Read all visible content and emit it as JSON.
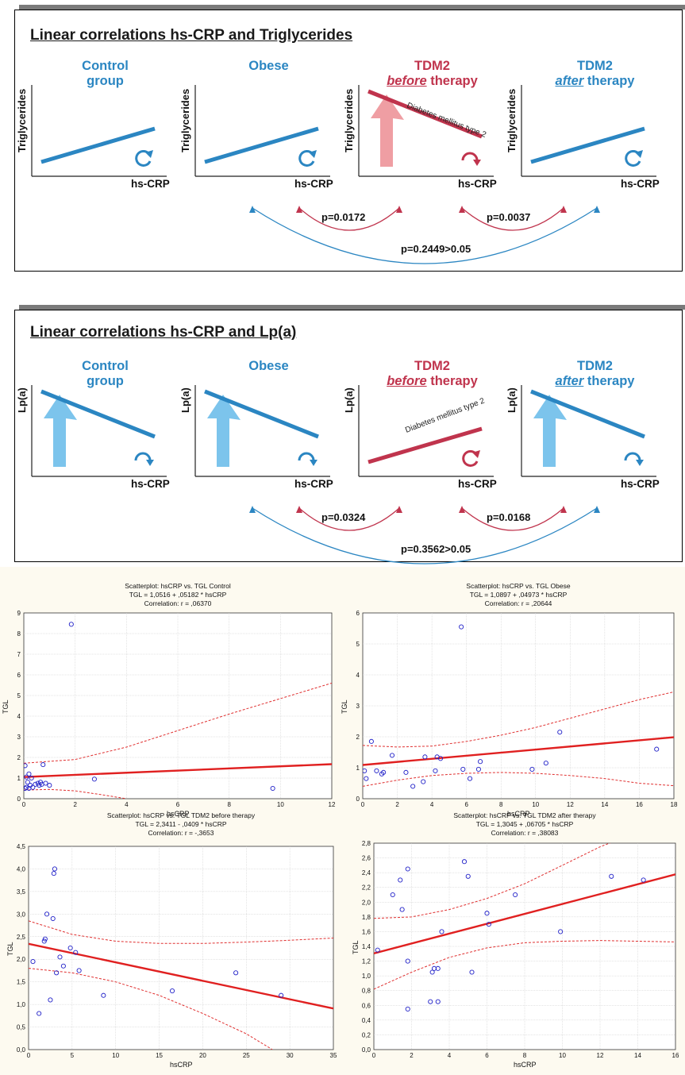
{
  "panels": [
    {
      "heading": "Linear correlations hs-CRP and Triglycerides",
      "ylabel": "Triglycerides",
      "xlabel": "hs-CRP",
      "groups": [
        {
          "line1": "Control",
          "line2": "group",
          "emphasis": "",
          "color": "#2b86c2",
          "trend": "positive",
          "icon": "rotate-ccw-icon"
        },
        {
          "line1": "Obese",
          "line2": "",
          "emphasis": "",
          "color": "#2b86c2",
          "trend": "positive",
          "icon": "rotate-ccw-icon"
        },
        {
          "line1": "TDM2",
          "line2": " therapy",
          "emphasis": "before",
          "color": "#c0344d",
          "trend": "negative",
          "icon": "rotate-cw-icon",
          "line_label": "Diabetes mellitus type 2"
        },
        {
          "line1": "TDM2",
          "line2": " therapy",
          "emphasis": "after",
          "color": "#2b86c2",
          "trend": "positive",
          "icon": "rotate-ccw-icon"
        }
      ],
      "p_values": [
        "p=0.0172",
        "p=0.0037",
        "p=0.2449>0.05"
      ]
    },
    {
      "heading": "Linear correlations hs-CRP and Lp(a)",
      "ylabel": "Lp(a)",
      "xlabel": "hs-CRP",
      "groups": [
        {
          "line1": "Control",
          "line2": "group",
          "emphasis": "",
          "color": "#2b86c2",
          "trend": "negative",
          "icon": "rotate-cw-icon"
        },
        {
          "line1": "Obese",
          "line2": "",
          "emphasis": "",
          "color": "#2b86c2",
          "trend": "negative",
          "icon": "rotate-cw-icon"
        },
        {
          "line1": "TDM2",
          "line2": " therapy",
          "emphasis": "before",
          "color": "#c0344d",
          "trend": "positive",
          "icon": "rotate-ccw-icon",
          "line_label": "Diabetes mellitus type 2"
        },
        {
          "line1": "TDM2",
          "line2": " therapy",
          "emphasis": "after",
          "color": "#2b86c2",
          "trend": "negative",
          "icon": "rotate-cw-icon"
        }
      ],
      "p_values": [
        "p=0.0324",
        "p=0.0168",
        "p=0.3562>0.05"
      ]
    }
  ],
  "chart_data": [
    {
      "type": "scatter",
      "title": "Scatterplot: hsCRP vs. TGL Control",
      "equation": "TGL = 1,0516 + ,05182 * hsCRP",
      "correlation": "Correlation: r = ,06370",
      "xlabel": "hsCRP",
      "ylabel": "TGL",
      "xlim": [
        0,
        12
      ],
      "ylim": [
        0,
        9
      ],
      "xticks": [
        "0",
        "2",
        "4",
        "6",
        "8",
        "10",
        "12"
      ],
      "yticks": [
        "0",
        "1",
        "2",
        "3",
        "4",
        "5",
        "6",
        "7",
        "8",
        "9"
      ],
      "intercept": 1.0516,
      "slope": 0.05182,
      "ci_low": [
        [
          0,
          0.42
        ],
        [
          1,
          0.45
        ],
        [
          2,
          0.38
        ],
        [
          3,
          0.2
        ],
        [
          4,
          0.0
        ]
      ],
      "ci_high": [
        [
          0,
          1.72
        ],
        [
          2,
          1.9
        ],
        [
          4,
          2.5
        ],
        [
          6,
          3.3
        ],
        [
          8,
          4.1
        ],
        [
          10,
          4.85
        ],
        [
          12,
          5.6
        ]
      ],
      "points": [
        [
          1.85,
          8.45
        ],
        [
          0.05,
          1.6
        ],
        [
          0.2,
          1.2
        ],
        [
          0.1,
          1.05
        ],
        [
          0.3,
          1.0
        ],
        [
          0.15,
          0.8
        ],
        [
          0.25,
          0.65
        ],
        [
          0.05,
          0.5
        ],
        [
          0.2,
          0.5
        ],
        [
          0.35,
          0.55
        ],
        [
          0.45,
          0.7
        ],
        [
          0.55,
          0.75
        ],
        [
          0.6,
          0.65
        ],
        [
          0.65,
          0.8
        ],
        [
          0.7,
          0.7
        ],
        [
          0.75,
          1.65
        ],
        [
          0.85,
          0.75
        ],
        [
          1.0,
          0.65
        ],
        [
          0.1,
          0.55
        ],
        [
          2.75,
          0.95
        ],
        [
          9.7,
          0.5
        ]
      ]
    },
    {
      "type": "scatter",
      "title": "Scatterplot: hsCRP vs. TGL Obese",
      "equation": "TGL = 1,0897 + ,04973 * hsCRP",
      "correlation": "Correlation: r = ,20644",
      "xlabel": "hsCRP",
      "ylabel": "TGL",
      "xlim": [
        0,
        18
      ],
      "ylim": [
        0,
        6
      ],
      "xticks": [
        "0",
        "2",
        "4",
        "6",
        "8",
        "10",
        "12",
        "14",
        "16",
        "18"
      ],
      "yticks": [
        "0",
        "1",
        "2",
        "3",
        "4",
        "5",
        "6"
      ],
      "intercept": 1.0897,
      "slope": 0.04973,
      "ci_low": [
        [
          0,
          0.4
        ],
        [
          2,
          0.6
        ],
        [
          4,
          0.75
        ],
        [
          6,
          0.82
        ],
        [
          8,
          0.85
        ],
        [
          10,
          0.82
        ],
        [
          12,
          0.75
        ],
        [
          14,
          0.65
        ],
        [
          16,
          0.5
        ],
        [
          18,
          0.42
        ]
      ],
      "ci_high": [
        [
          0,
          1.72
        ],
        [
          2,
          1.67
        ],
        [
          4,
          1.7
        ],
        [
          6,
          1.85
        ],
        [
          8,
          2.05
        ],
        [
          10,
          2.3
        ],
        [
          12,
          2.6
        ],
        [
          14,
          2.9
        ],
        [
          16,
          3.2
        ],
        [
          18,
          3.45
        ]
      ],
      "points": [
        [
          0.1,
          0.9
        ],
        [
          0.2,
          0.65
        ],
        [
          0.5,
          1.85
        ],
        [
          0.8,
          0.9
        ],
        [
          1.1,
          0.8
        ],
        [
          1.2,
          0.85
        ],
        [
          1.7,
          1.4
        ],
        [
          2.5,
          0.85
        ],
        [
          2.9,
          0.4
        ],
        [
          3.5,
          0.55
        ],
        [
          3.6,
          1.35
        ],
        [
          4.2,
          0.9
        ],
        [
          4.3,
          1.35
        ],
        [
          4.5,
          1.3
        ],
        [
          5.7,
          5.55
        ],
        [
          5.8,
          0.95
        ],
        [
          6.2,
          0.65
        ],
        [
          6.7,
          0.95
        ],
        [
          6.8,
          1.2
        ],
        [
          9.8,
          0.95
        ],
        [
          10.6,
          1.15
        ],
        [
          11.4,
          2.15
        ],
        [
          17.0,
          1.6
        ]
      ]
    },
    {
      "type": "scatter",
      "title": "Scatterplot: hsCRP vs. TGL TDM2 before therapy",
      "equation": "TGL = 2,3411 - ,0409  * hsCRP",
      "correlation": "Correlation: r = -,3653",
      "xlabel": "hsCRP",
      "ylabel": "TGL",
      "xlim": [
        0,
        35
      ],
      "ylim": [
        0,
        4.5
      ],
      "xticks": [
        "0",
        "5",
        "10",
        "15",
        "20",
        "25",
        "30",
        "35"
      ],
      "yticks": [
        "0,0",
        "0,5",
        "1,0",
        "1,5",
        "2,0",
        "2,5",
        "3,0",
        "3,5",
        "4,0",
        "4,5"
      ],
      "intercept": 2.3411,
      "slope": -0.0409,
      "ci_low": [
        [
          0,
          1.8
        ],
        [
          5,
          1.7
        ],
        [
          10,
          1.5
        ],
        [
          15,
          1.2
        ],
        [
          20,
          0.8
        ],
        [
          25,
          0.35
        ],
        [
          28,
          0.0
        ]
      ],
      "ci_high": [
        [
          0,
          2.85
        ],
        [
          5,
          2.55
        ],
        [
          10,
          2.4
        ],
        [
          15,
          2.35
        ],
        [
          20,
          2.35
        ],
        [
          25,
          2.38
        ],
        [
          30,
          2.42
        ],
        [
          35,
          2.47
        ]
      ],
      "points": [
        [
          0.5,
          1.95
        ],
        [
          1.2,
          0.8
        ],
        [
          1.8,
          2.4
        ],
        [
          1.9,
          2.45
        ],
        [
          2.1,
          3.0
        ],
        [
          2.5,
          1.1
        ],
        [
          2.8,
          2.9
        ],
        [
          2.9,
          3.9
        ],
        [
          3.0,
          4.0
        ],
        [
          3.2,
          1.7
        ],
        [
          3.6,
          2.05
        ],
        [
          4.0,
          1.85
        ],
        [
          4.8,
          2.25
        ],
        [
          5.4,
          2.15
        ],
        [
          5.8,
          1.75
        ],
        [
          8.6,
          1.2
        ],
        [
          16.5,
          1.3
        ],
        [
          23.8,
          1.7
        ],
        [
          29.0,
          1.2
        ]
      ]
    },
    {
      "type": "scatter",
      "title": "Scatterplot: hsCRP vs. TGL TDM2 after therapy",
      "equation": "TGL = 1,3045 + ,06705 * hsCRP",
      "correlation": "Correlation: r = ,38083",
      "xlabel": "hsCRP",
      "ylabel": "TGL",
      "xlim": [
        0,
        16
      ],
      "ylim": [
        0,
        2.8
      ],
      "xticks": [
        "0",
        "2",
        "4",
        "6",
        "8",
        "10",
        "12",
        "14",
        "16"
      ],
      "yticks": [
        "0,0",
        "0,2",
        "0,4",
        "0,6",
        "0,8",
        "1,0",
        "1,2",
        "1,4",
        "1,6",
        "1,8",
        "2,0",
        "2,2",
        "2,4",
        "2,6",
        "2,8"
      ],
      "intercept": 1.3045,
      "slope": 0.06705,
      "ci_low": [
        [
          0,
          0.82
        ],
        [
          2,
          1.05
        ],
        [
          4,
          1.25
        ],
        [
          6,
          1.38
        ],
        [
          8,
          1.45
        ],
        [
          10,
          1.47
        ],
        [
          12,
          1.48
        ],
        [
          14,
          1.47
        ],
        [
          16,
          1.46
        ]
      ],
      "ci_high": [
        [
          0,
          1.78
        ],
        [
          2,
          1.8
        ],
        [
          4,
          1.9
        ],
        [
          6,
          2.05
        ],
        [
          8,
          2.25
        ],
        [
          10,
          2.5
        ],
        [
          12,
          2.75
        ],
        [
          13,
          2.85
        ]
      ],
      "points": [
        [
          0.2,
          1.35
        ],
        [
          1.0,
          2.1
        ],
        [
          1.4,
          2.3
        ],
        [
          1.5,
          1.9
        ],
        [
          1.8,
          2.45
        ],
        [
          1.8,
          1.2
        ],
        [
          1.8,
          0.55
        ],
        [
          3.0,
          0.65
        ],
        [
          3.1,
          1.05
        ],
        [
          3.2,
          1.1
        ],
        [
          3.4,
          1.1
        ],
        [
          3.4,
          0.65
        ],
        [
          3.6,
          1.6
        ],
        [
          4.8,
          2.55
        ],
        [
          5.0,
          2.35
        ],
        [
          5.2,
          1.05
        ],
        [
          6.0,
          1.85
        ],
        [
          6.1,
          1.7
        ],
        [
          7.5,
          2.1
        ],
        [
          9.9,
          1.6
        ],
        [
          12.6,
          2.35
        ],
        [
          14.3,
          2.3
        ]
      ]
    }
  ]
}
